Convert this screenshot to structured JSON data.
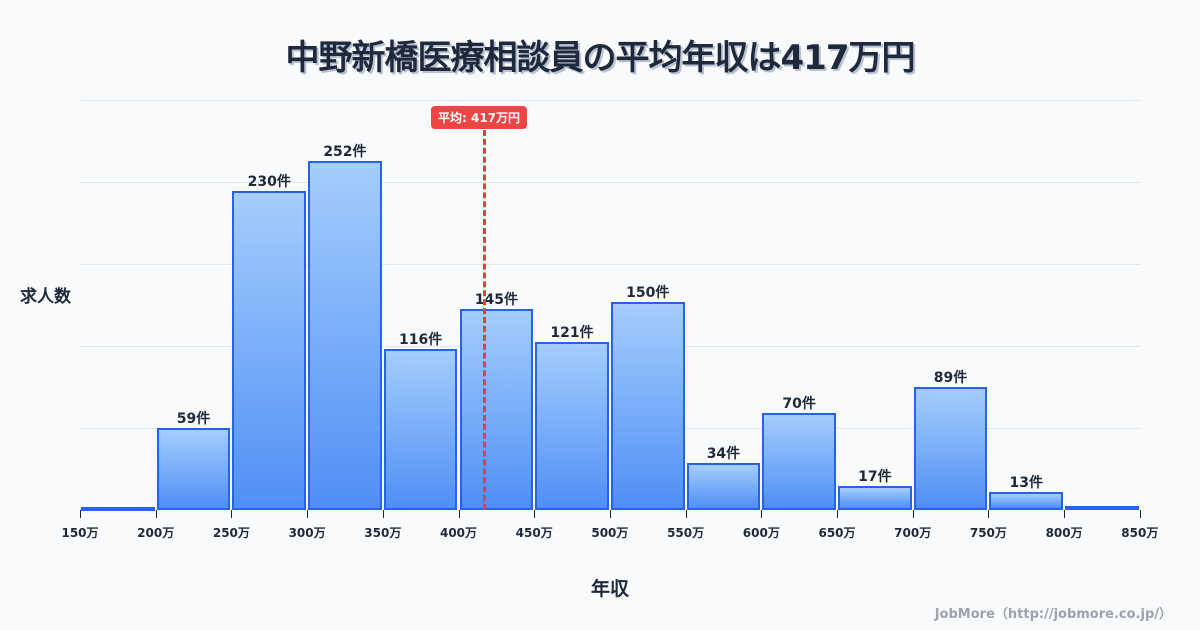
{
  "title": "中野新橋医療相談員の平均年収は417万円",
  "mean_badge": "平均: 417万円",
  "footer": "JobMore（http://jobmore.co.jp/）",
  "chart_data": {
    "type": "bar",
    "title": "中野新橋医療相談員の平均年収は417万円",
    "xlabel": "年収",
    "ylabel": "求人数",
    "categories": [
      "150-200万",
      "200-250万",
      "250-300万",
      "300-350万",
      "350-400万",
      "400-450万",
      "450-500万",
      "500-550万",
      "550-600万",
      "600-650万",
      "650-700万",
      "700-750万",
      "750-800万",
      "800-850万"
    ],
    "values": [
      2,
      59,
      230,
      252,
      116,
      145,
      121,
      150,
      34,
      70,
      17,
      89,
      13,
      3
    ],
    "labels": [
      "",
      "59件",
      "230件",
      "252件",
      "116件",
      "145件",
      "121件",
      "150件",
      "34件",
      "70件",
      "17件",
      "89件",
      "13件",
      ""
    ],
    "x_ticks": [
      "150万",
      "200万",
      "250万",
      "300万",
      "350万",
      "400万",
      "450万",
      "500万",
      "550万",
      "600万",
      "650万",
      "700万",
      "750万",
      "800万",
      "850万"
    ],
    "mean": 417,
    "mean_label": "平均: 417万円",
    "grid": true,
    "ylim": [
      0,
      296
    ]
  }
}
